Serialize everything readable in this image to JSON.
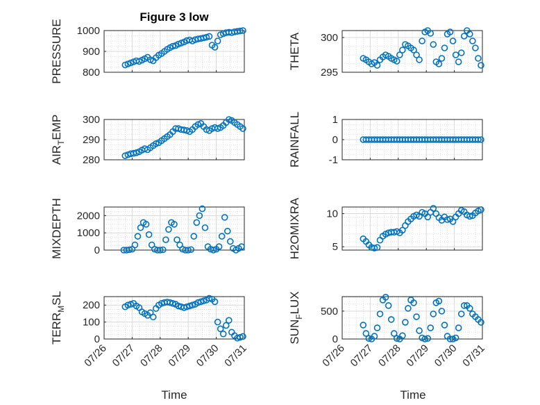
{
  "figure": {
    "title": "Figure 3 low",
    "xlabel": "Time",
    "x_ticks": [
      "07/26",
      "07/27",
      "07/28",
      "07/29",
      "07/30",
      "07/31"
    ],
    "marker_color": "#0072BD"
  },
  "chart_data": [
    {
      "type": "scatter",
      "ylabel": "PRESSURE",
      "ylabel_sub": "",
      "xlim": [
        0,
        5
      ],
      "ylim": [
        800,
        1000
      ],
      "yticks": [
        "800",
        "900",
        "1000"
      ],
      "ytick_values": [
        800,
        900,
        1000
      ],
      "grid": true,
      "x": [
        0.75,
        0.85,
        0.95,
        1.05,
        1.15,
        1.25,
        1.35,
        1.45,
        1.55,
        1.65,
        1.75,
        1.85,
        1.95,
        2.05,
        2.15,
        2.25,
        2.35,
        2.45,
        2.55,
        2.65,
        2.75,
        2.85,
        2.95,
        3.05,
        3.15,
        3.25,
        3.35,
        3.45,
        3.55,
        3.65,
        3.75,
        3.85,
        3.95,
        4.05,
        4.15,
        4.25,
        4.35,
        4.45,
        4.55,
        4.65,
        4.75,
        4.85,
        4.95
      ],
      "y": [
        835,
        840,
        845,
        850,
        855,
        852,
        858,
        865,
        872,
        860,
        855,
        870,
        882,
        890,
        900,
        910,
        918,
        925,
        928,
        935,
        940,
        945,
        952,
        955,
        950,
        956,
        960,
        962,
        965,
        968,
        972,
        930,
        920,
        950,
        980,
        985,
        990,
        992,
        990,
        994,
        996,
        998,
        1000
      ]
    },
    {
      "type": "scatter",
      "ylabel": "THETA",
      "ylabel_sub": "",
      "xlim": [
        0,
        5
      ],
      "ylim": [
        295,
        301
      ],
      "yticks": [
        "295",
        "300"
      ],
      "ytick_values": [
        295,
        300
      ],
      "grid": true,
      "x": [
        0.75,
        0.85,
        0.95,
        1.05,
        1.15,
        1.25,
        1.35,
        1.45,
        1.55,
        1.65,
        1.75,
        1.85,
        1.95,
        2.05,
        2.15,
        2.25,
        2.35,
        2.45,
        2.55,
        2.65,
        2.75,
        2.85,
        2.95,
        3.05,
        3.15,
        3.25,
        3.35,
        3.45,
        3.55,
        3.65,
        3.75,
        3.85,
        3.95,
        4.05,
        4.15,
        4.25,
        4.35,
        4.45,
        4.55,
        4.65,
        4.75,
        4.85,
        4.95
      ],
      "y": [
        297,
        296.8,
        296.5,
        296.2,
        296.4,
        296,
        296.8,
        297.2,
        297.5,
        297.3,
        297,
        296.8,
        296.6,
        297.5,
        298.2,
        299,
        298.8,
        298.5,
        298.2,
        297.5,
        296.8,
        299.5,
        300.8,
        301,
        300.6,
        299,
        296.5,
        296.2,
        297,
        298.5,
        300.5,
        300.8,
        299.5,
        297.5,
        296.5,
        297.8,
        300.2,
        301,
        300.5,
        299.5,
        298.5,
        297,
        296
      ]
    },
    {
      "type": "scatter",
      "ylabel": "AIR",
      "ylabel_sub": "T",
      "ylabel_rest": "EMP",
      "xlim": [
        0,
        5
      ],
      "ylim": [
        280,
        300
      ],
      "yticks": [
        "280",
        "290",
        "300"
      ],
      "ytick_values": [
        280,
        290,
        300
      ],
      "grid": true,
      "x": [
        0.75,
        0.85,
        0.95,
        1.05,
        1.15,
        1.25,
        1.35,
        1.45,
        1.55,
        1.65,
        1.75,
        1.85,
        1.95,
        2.05,
        2.15,
        2.25,
        2.35,
        2.45,
        2.55,
        2.65,
        2.75,
        2.85,
        2.95,
        3.05,
        3.15,
        3.25,
        3.35,
        3.45,
        3.55,
        3.65,
        3.75,
        3.85,
        3.95,
        4.05,
        4.15,
        4.25,
        4.35,
        4.45,
        4.55,
        4.65,
        4.75,
        4.85,
        4.95
      ],
      "y": [
        282,
        282.5,
        283,
        283.2,
        283.5,
        284,
        284.8,
        285.5,
        285,
        286,
        287,
        288,
        288.5,
        289.5,
        290.5,
        291.5,
        292.5,
        294,
        295.5,
        295.5,
        295,
        294.8,
        294.5,
        294,
        295,
        296.5,
        297.5,
        298,
        296.5,
        295,
        294.5,
        295.5,
        296,
        295.5,
        296,
        297,
        298.5,
        300,
        299.5,
        298.5,
        297.5,
        296.5,
        295.5
      ]
    },
    {
      "type": "scatter",
      "ylabel": "RAINFALL",
      "ylabel_sub": "",
      "xlim": [
        0,
        5
      ],
      "ylim": [
        -1,
        1
      ],
      "yticks": [
        "-1",
        "0",
        "1"
      ],
      "ytick_values": [
        -1,
        0,
        1
      ],
      "grid": true,
      "x": [
        0.75,
        0.85,
        0.95,
        1.05,
        1.15,
        1.25,
        1.35,
        1.45,
        1.55,
        1.65,
        1.75,
        1.85,
        1.95,
        2.05,
        2.15,
        2.25,
        2.35,
        2.45,
        2.55,
        2.65,
        2.75,
        2.85,
        2.95,
        3.05,
        3.15,
        3.25,
        3.35,
        3.45,
        3.55,
        3.65,
        3.75,
        3.85,
        3.95,
        4.05,
        4.15,
        4.25,
        4.35,
        4.45,
        4.55,
        4.65,
        4.75,
        4.85,
        4.95
      ],
      "y": [
        0,
        0,
        0,
        0,
        0,
        0,
        0,
        0,
        0,
        0,
        0,
        0,
        0,
        0,
        0,
        0,
        0,
        0,
        0,
        0,
        0,
        0,
        0,
        0,
        0,
        0,
        0,
        0,
        0,
        0,
        0,
        0,
        0,
        0,
        0,
        0,
        0,
        0,
        0,
        0,
        0,
        0,
        0
      ]
    },
    {
      "type": "scatter",
      "ylabel": "MIXDEPTH",
      "ylabel_sub": "",
      "xlim": [
        0,
        5
      ],
      "ylim": [
        0,
        2500
      ],
      "yticks": [
        "0",
        "1000",
        "2000"
      ],
      "ytick_values": [
        0,
        1000,
        2000
      ],
      "grid": true,
      "x": [
        0.7,
        0.8,
        0.9,
        1.0,
        1.1,
        1.2,
        1.3,
        1.4,
        1.5,
        1.6,
        1.7,
        1.8,
        1.9,
        2.0,
        2.1,
        2.2,
        2.3,
        2.4,
        2.5,
        2.6,
        2.7,
        2.8,
        2.9,
        3.0,
        3.1,
        3.2,
        3.3,
        3.4,
        3.5,
        3.6,
        3.7,
        3.8,
        3.9,
        4.0,
        4.1,
        4.2,
        4.3,
        4.4,
        4.5,
        4.6,
        4.7,
        4.8,
        4.9
      ],
      "y": [
        0,
        0,
        20,
        50,
        300,
        800,
        1300,
        1600,
        1500,
        900,
        300,
        50,
        0,
        0,
        20,
        600,
        1200,
        1600,
        1500,
        600,
        300,
        50,
        0,
        0,
        30,
        800,
        1600,
        2000,
        2400,
        1300,
        200,
        50,
        0,
        50,
        200,
        800,
        1900,
        1100,
        500,
        100,
        0,
        100,
        200
      ]
    },
    {
      "type": "scatter",
      "ylabel": "H2OMIXRA",
      "ylabel_sub": "",
      "xlim": [
        0,
        5
      ],
      "ylim": [
        4.5,
        11
      ],
      "yticks": [
        "5",
        "10"
      ],
      "ytick_values": [
        5,
        10
      ],
      "grid": true,
      "x": [
        0.75,
        0.85,
        0.95,
        1.05,
        1.15,
        1.25,
        1.35,
        1.45,
        1.55,
        1.65,
        1.75,
        1.85,
        1.95,
        2.05,
        2.15,
        2.25,
        2.35,
        2.45,
        2.55,
        2.65,
        2.75,
        2.85,
        2.95,
        3.05,
        3.15,
        3.25,
        3.35,
        3.45,
        3.55,
        3.65,
        3.75,
        3.85,
        3.95,
        4.05,
        4.15,
        4.25,
        4.35,
        4.45,
        4.55,
        4.65,
        4.75,
        4.85,
        4.95
      ],
      "y": [
        6.2,
        5.8,
        5.3,
        4.9,
        4.8,
        4.9,
        6.0,
        6.6,
        6.9,
        7.1,
        7.2,
        7.2,
        7.3,
        7.1,
        7.5,
        8.2,
        8.8,
        9.2,
        9.6,
        9.8,
        9.6,
        10.2,
        10.0,
        9.5,
        10.2,
        10.8,
        10.0,
        9.4,
        9.0,
        9.5,
        9.1,
        9.2,
        8.8,
        9.5,
        10.0,
        10.5,
        10.3,
        9.8,
        9.6,
        9.7,
        10.1,
        10.4,
        10.6
      ]
    },
    {
      "type": "scatter",
      "ylabel": "TERR",
      "ylabel_sub": "M",
      "ylabel_rest": "SL",
      "xlim": [
        0,
        5
      ],
      "ylim": [
        0,
        250
      ],
      "yticks": [
        "0",
        "100",
        "200"
      ],
      "ytick_values": [
        0,
        100,
        200
      ],
      "grid": true,
      "x": [
        0.75,
        0.85,
        0.95,
        1.05,
        1.15,
        1.25,
        1.35,
        1.45,
        1.55,
        1.65,
        1.75,
        1.85,
        1.95,
        2.05,
        2.15,
        2.25,
        2.35,
        2.45,
        2.55,
        2.65,
        2.75,
        2.85,
        2.95,
        3.05,
        3.15,
        3.25,
        3.35,
        3.45,
        3.55,
        3.65,
        3.75,
        3.85,
        3.95,
        4.05,
        4.15,
        4.25,
        4.35,
        4.45,
        4.55,
        4.65,
        4.75,
        4.85,
        4.95
      ],
      "y": [
        190,
        200,
        205,
        210,
        195,
        185,
        160,
        150,
        140,
        155,
        130,
        180,
        200,
        210,
        215,
        218,
        215,
        210,
        205,
        195,
        190,
        185,
        190,
        195,
        200,
        205,
        215,
        220,
        225,
        230,
        240,
        235,
        220,
        100,
        60,
        30,
        80,
        110,
        40,
        20,
        5,
        10,
        15
      ]
    },
    {
      "type": "scatter",
      "ylabel": "SUN",
      "ylabel_sub": "F",
      "ylabel_rest": "LUX",
      "xlim": [
        0,
        5
      ],
      "ylim": [
        0,
        760
      ],
      "yticks": [
        "0",
        "500"
      ],
      "ytick_values": [
        0,
        500
      ],
      "grid": true,
      "x": [
        0.75,
        0.85,
        0.95,
        1.05,
        1.15,
        1.25,
        1.35,
        1.45,
        1.55,
        1.65,
        1.75,
        1.85,
        1.95,
        2.05,
        2.15,
        2.25,
        2.35,
        2.45,
        2.55,
        2.65,
        2.75,
        2.85,
        2.95,
        3.05,
        3.15,
        3.25,
        3.35,
        3.45,
        3.55,
        3.65,
        3.75,
        3.85,
        3.95,
        4.05,
        4.15,
        4.25,
        4.35,
        4.45,
        4.55,
        4.65,
        4.75,
        4.85,
        4.95
      ],
      "y": [
        250,
        100,
        10,
        0,
        50,
        200,
        450,
        700,
        750,
        600,
        350,
        100,
        10,
        0,
        60,
        300,
        550,
        700,
        650,
        400,
        150,
        20,
        0,
        10,
        200,
        450,
        650,
        680,
        500,
        250,
        50,
        0,
        0,
        20,
        200,
        450,
        600,
        600,
        550,
        450,
        400,
        350,
        300
      ]
    }
  ]
}
